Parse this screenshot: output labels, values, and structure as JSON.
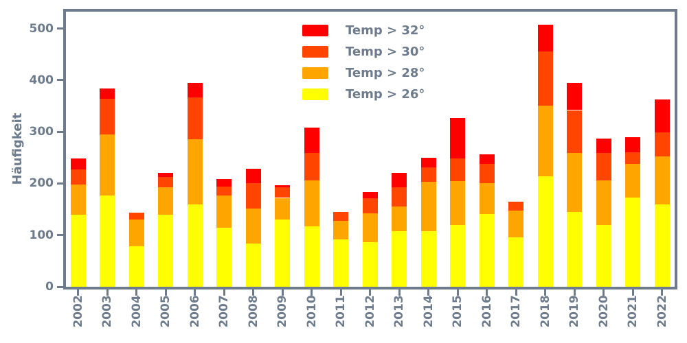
{
  "figure": {
    "ylabel": "Häufigkeit",
    "background_color": "#ffffff",
    "axis_color": "#6d7b8c"
  },
  "chart_data": {
    "type": "bar",
    "stacked": true,
    "title": "",
    "xlabel": "",
    "ylabel": "Häufigkeit",
    "ylim": [
      0,
      533
    ],
    "yticks": [
      0,
      100,
      200,
      300,
      400,
      500
    ],
    "grid": false,
    "legend_position": "upper center-right, no frame, entries top to bottom: Temp > 32°, Temp > 30°, Temp > 28°, Temp > 26°",
    "categories": [
      "2002",
      "2003",
      "2004",
      "2005",
      "2006",
      "2007",
      "2008",
      "2009",
      "2010",
      "2011",
      "2012",
      "2013",
      "2014",
      "2015",
      "2016",
      "2017",
      "2018",
      "2019",
      "2020",
      "2021",
      "2022"
    ],
    "series": [
      {
        "name": "Temp > 26°",
        "color": "#ffff00",
        "values": [
          140,
          177,
          78,
          139,
          159,
          114,
          84,
          130,
          117,
          91,
          87,
          107,
          108,
          120,
          141,
          95,
          214,
          145,
          120,
          172,
          160
        ]
      },
      {
        "name": "Temp > 28°",
        "color": "#ffa500",
        "values": [
          58,
          118,
          52,
          54,
          127,
          63,
          67,
          42,
          89,
          36,
          55,
          48,
          95,
          84,
          60,
          53,
          137,
          114,
          86,
          66,
          93
        ]
      },
      {
        "name": "Temp > 30°",
        "color": "#ff4500",
        "values": [
          29,
          69,
          14,
          19,
          80,
          17,
          50,
          21,
          53,
          18,
          29,
          37,
          28,
          45,
          37,
          17,
          104,
          83,
          53,
          22,
          46
        ]
      },
      {
        "name": "Temp > 32°",
        "color": "#ff0000",
        "values": [
          21,
          20,
          0,
          8,
          29,
          15,
          28,
          3,
          49,
          0,
          12,
          28,
          19,
          78,
          18,
          0,
          52,
          53,
          28,
          29,
          64
        ]
      }
    ],
    "totals": [
      248,
      384,
      144,
      220,
      395,
      209,
      229,
      196,
      308,
      145,
      183,
      220,
      250,
      327,
      256,
      165,
      507,
      395,
      287,
      289,
      363
    ],
    "legend_entries_top_to_bottom": [
      "Temp > 32°",
      "Temp > 30°",
      "Temp > 28°",
      "Temp > 26°"
    ]
  }
}
